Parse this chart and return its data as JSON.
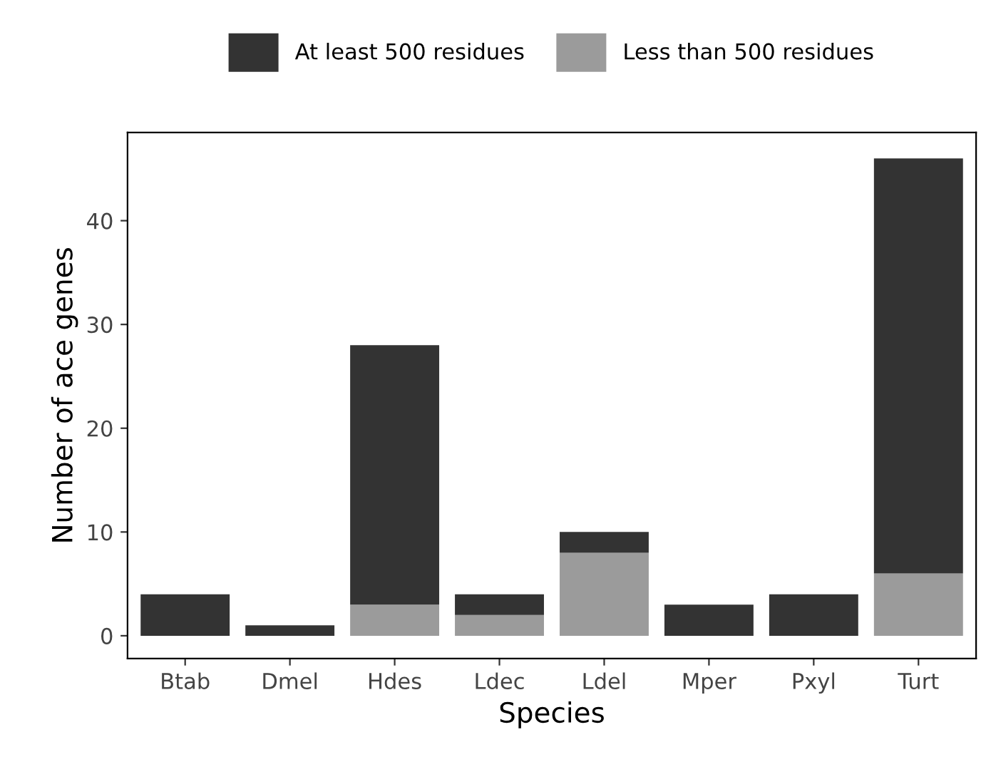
{
  "chart_data": {
    "type": "bar",
    "stacked": true,
    "xlabel": "Species",
    "ylabel": "Number of ace genes",
    "categories": [
      "Btab",
      "Dmel",
      "Hdes",
      "Ldec",
      "Ldel",
      "Mper",
      "Pxyl",
      "Turt"
    ],
    "series": [
      {
        "name": "Less than 500 residues",
        "color": "#9b9b9b",
        "values": [
          0,
          0,
          3,
          2,
          8,
          0,
          0,
          6
        ]
      },
      {
        "name": "At least 500 residues",
        "color": "#333333",
        "values": [
          4,
          1,
          25,
          2,
          2,
          3,
          4,
          40
        ]
      }
    ],
    "ylim": [
      -2.2,
      48.5
    ],
    "yticks": [
      0,
      10,
      20,
      30,
      40
    ],
    "grid": false,
    "legend": "top"
  }
}
